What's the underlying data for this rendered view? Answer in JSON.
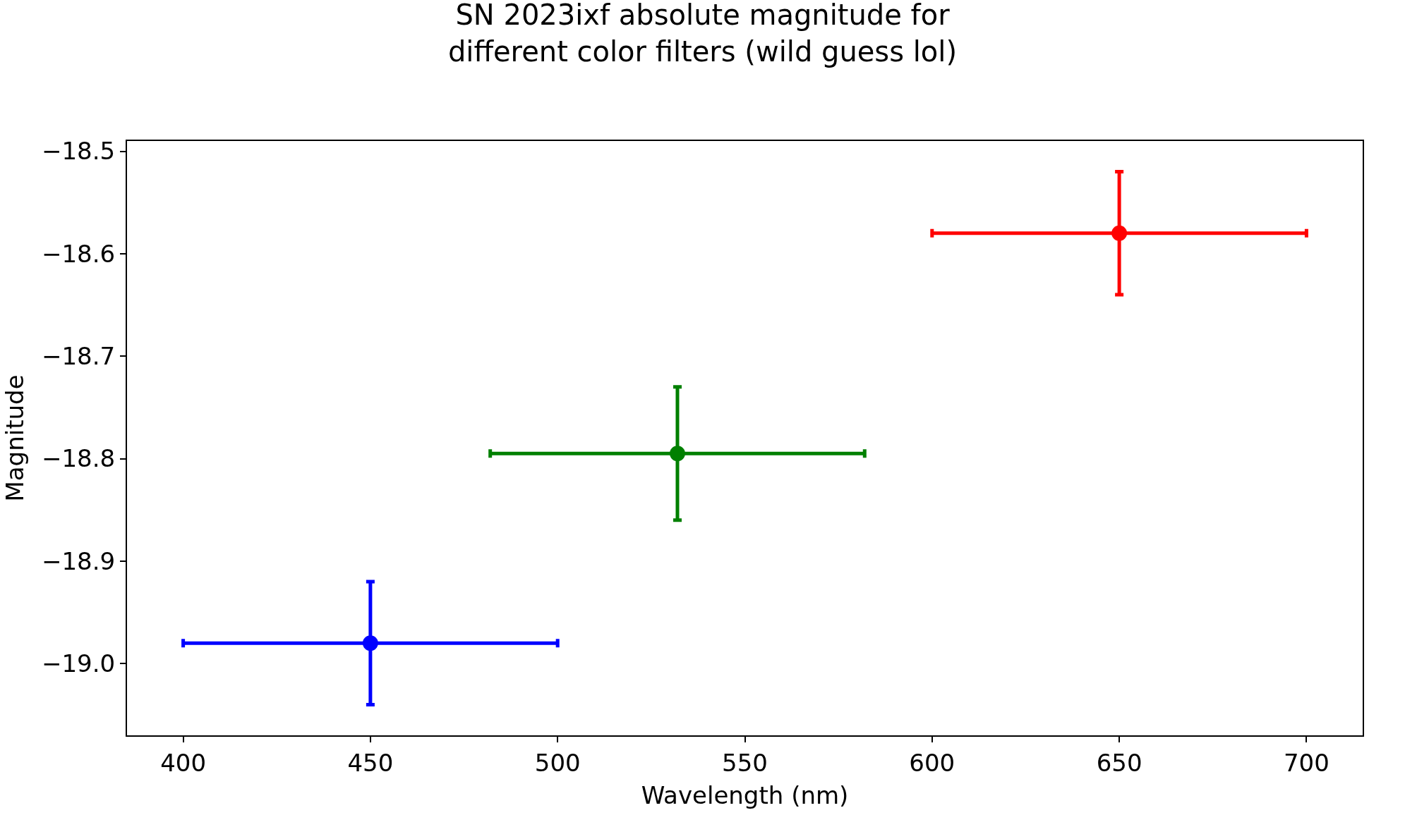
{
  "chart_data": {
    "type": "scatter",
    "title": "SN 2023ixf absolute magnitude for\ndifferent color filters (wild guess lol)",
    "xlabel": "Wavelength (nm)",
    "ylabel": "Magnitude",
    "series": [
      {
        "color": "#0000ff",
        "x": [
          450
        ],
        "values": [
          -18.98
        ],
        "errors": [
          0.06
        ],
        "xerrors": [
          50
        ]
      },
      {
        "color": "#008000",
        "x": [
          532
        ],
        "values": [
          -18.795
        ],
        "errors": [
          0.065
        ],
        "xerrors": [
          50
        ]
      },
      {
        "color": "#ff0000",
        "x": [
          650
        ],
        "values": [
          -18.58
        ],
        "errors": [
          0.06
        ],
        "xerrors": [
          50
        ]
      }
    ],
    "xlim": [
      385,
      715
    ],
    "xticks": [
      400,
      450,
      500,
      550,
      600,
      650,
      700
    ],
    "ylim": [
      -19.07,
      -18.49
    ],
    "yticks": [
      {
        "value": -19.0,
        "label": "−19.0"
      },
      {
        "value": -18.9,
        "label": "−18.9"
      },
      {
        "value": -18.8,
        "label": "−18.8"
      },
      {
        "value": -18.7,
        "label": "−18.7"
      },
      {
        "value": -18.6,
        "label": "−18.6"
      },
      {
        "value": -18.5,
        "label": "−18.5"
      }
    ],
    "marker": "circle"
  }
}
